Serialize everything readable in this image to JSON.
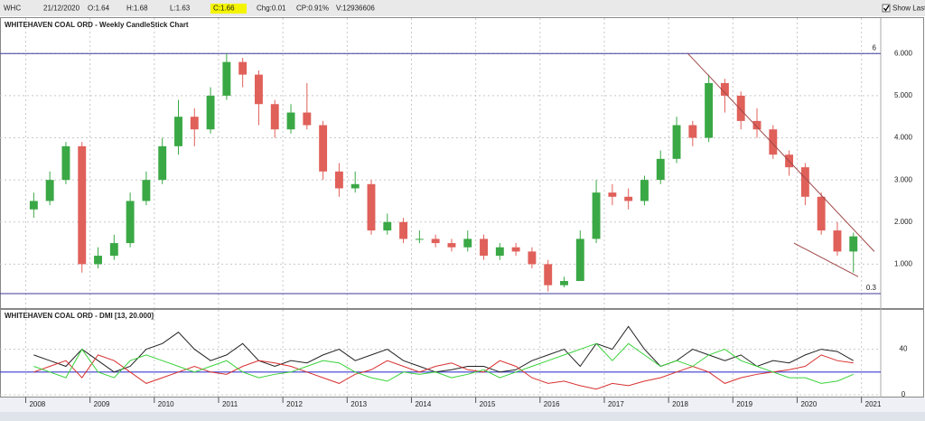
{
  "header": {
    "symbol": "WHC",
    "date": "21/12/2020",
    "open": "O:1.64",
    "high": "H:1.68",
    "low": "L:1.63",
    "close": "C:1.66",
    "change": "Chg:0.01",
    "change_pct": "CP:0.91%",
    "volume": "V:12936606",
    "show_last": "Show Last"
  },
  "chart_data": [
    {
      "type": "candlestick",
      "title": "WHITEHAVEN COAL ORD - Weekly CandleStick Chart",
      "x": [
        2008.125,
        2008.375,
        2008.625,
        2008.875,
        2009.125,
        2009.375,
        2009.625,
        2009.875,
        2010.125,
        2010.375,
        2010.625,
        2010.875,
        2011.125,
        2011.375,
        2011.625,
        2011.875,
        2012.125,
        2012.375,
        2012.625,
        2012.875,
        2013.125,
        2013.375,
        2013.625,
        2013.875,
        2014.125,
        2014.375,
        2014.625,
        2014.875,
        2015.125,
        2015.375,
        2015.625,
        2015.875,
        2016.125,
        2016.375,
        2016.625,
        2016.875,
        2017.125,
        2017.375,
        2017.625,
        2017.875,
        2018.125,
        2018.375,
        2018.625,
        2018.875,
        2019.125,
        2019.375,
        2019.625,
        2019.875,
        2020.125,
        2020.375,
        2020.625,
        2020.875
      ],
      "open": [
        2.3,
        2.5,
        3.0,
        3.8,
        1.0,
        1.2,
        1.5,
        2.5,
        3.0,
        3.8,
        4.5,
        4.2,
        5.0,
        5.8,
        5.5,
        4.8,
        4.2,
        4.6,
        4.3,
        3.2,
        2.8,
        2.9,
        1.8,
        2.0,
        1.6,
        1.6,
        1.5,
        1.4,
        1.6,
        1.2,
        1.4,
        1.3,
        1.0,
        0.5,
        0.6,
        1.6,
        2.7,
        2.6,
        2.5,
        3.0,
        3.5,
        4.3,
        4.0,
        5.3,
        5.0,
        4.4,
        4.2,
        3.6,
        3.3,
        2.6,
        1.8,
        1.3
      ],
      "high": [
        2.7,
        3.2,
        3.9,
        3.9,
        1.4,
        1.7,
        2.7,
        3.2,
        4.0,
        4.9,
        4.7,
        5.2,
        6.0,
        5.9,
        5.6,
        4.9,
        4.8,
        5.3,
        4.4,
        3.4,
        3.2,
        3.0,
        2.2,
        2.1,
        1.8,
        1.7,
        1.6,
        1.8,
        1.7,
        1.5,
        1.5,
        1.4,
        1.1,
        0.7,
        1.8,
        3.0,
        2.9,
        2.8,
        3.1,
        3.7,
        4.5,
        4.4,
        5.5,
        5.4,
        5.1,
        4.7,
        4.3,
        3.7,
        3.4,
        2.7,
        2.0,
        1.75
      ],
      "low": [
        2.1,
        2.4,
        2.9,
        0.8,
        0.9,
        1.1,
        1.4,
        2.4,
        2.9,
        3.6,
        3.8,
        4.1,
        4.9,
        5.2,
        4.3,
        4.0,
        4.1,
        4.2,
        3.0,
        2.6,
        2.7,
        1.7,
        1.7,
        1.5,
        1.5,
        1.4,
        1.3,
        1.3,
        1.1,
        1.1,
        1.2,
        0.9,
        0.35,
        0.45,
        0.6,
        1.5,
        2.4,
        2.3,
        2.4,
        2.9,
        3.4,
        3.8,
        3.9,
        4.6,
        4.2,
        4.0,
        3.5,
        3.1,
        2.4,
        1.7,
        1.2,
        0.8
      ],
      "close": [
        2.5,
        3.0,
        3.8,
        1.0,
        1.2,
        1.5,
        2.5,
        3.0,
        3.8,
        4.5,
        4.2,
        5.0,
        5.8,
        5.5,
        4.8,
        4.2,
        4.6,
        4.3,
        3.2,
        2.8,
        2.9,
        1.8,
        2.0,
        1.6,
        1.6,
        1.5,
        1.4,
        1.6,
        1.2,
        1.4,
        1.3,
        1.0,
        0.5,
        0.6,
        1.6,
        2.7,
        2.6,
        2.5,
        3.0,
        3.5,
        4.3,
        4.0,
        5.3,
        5.0,
        4.4,
        4.2,
        3.6,
        3.3,
        2.6,
        1.8,
        1.3,
        1.66
      ],
      "up_color": "#3aa845",
      "down_color": "#e0605a",
      "xlim": [
        2007.6,
        2021.3
      ],
      "ylim": [
        0,
        6.8
      ],
      "yticks": [
        {
          "value": 1,
          "label": "1.000"
        },
        {
          "value": 2,
          "label": "2.000"
        },
        {
          "value": 3,
          "label": "3.000"
        },
        {
          "value": 4,
          "label": "4.000"
        },
        {
          "value": 5,
          "label": "5.000"
        },
        {
          "value": 6,
          "label": "6.000"
        }
      ],
      "levels": [
        {
          "value": 6,
          "label": "6"
        },
        {
          "value": 0.3,
          "label": "0.3"
        }
      ],
      "level_color": "#3b3b9a",
      "trendlines": [
        {
          "x": [
            2018.3,
            2021.2
          ],
          "y": [
            6.0,
            1.3
          ]
        },
        {
          "x": [
            2019.95,
            2020.95
          ],
          "y": [
            1.5,
            0.7
          ]
        }
      ],
      "trend_color": "#a04848",
      "grid": true
    },
    {
      "type": "line",
      "title": "WHITEHAVEN COAL ORD - DMI [13, 20.000]",
      "x": [
        2008.125,
        2008.375,
        2008.625,
        2008.875,
        2009.125,
        2009.375,
        2009.625,
        2009.875,
        2010.125,
        2010.375,
        2010.625,
        2010.875,
        2011.125,
        2011.375,
        2011.625,
        2011.875,
        2012.125,
        2012.375,
        2012.625,
        2012.875,
        2013.125,
        2013.375,
        2013.625,
        2013.875,
        2014.125,
        2014.375,
        2014.625,
        2014.875,
        2015.125,
        2015.375,
        2015.625,
        2015.875,
        2016.125,
        2016.375,
        2016.625,
        2016.875,
        2017.125,
        2017.375,
        2017.625,
        2017.875,
        2018.125,
        2018.375,
        2018.625,
        2018.875,
        2019.125,
        2019.375,
        2019.625,
        2019.875,
        2020.125,
        2020.375,
        2020.625,
        2020.875
      ],
      "series": [
        {
          "color": "#222222",
          "values": [
            35,
            30,
            25,
            40,
            30,
            20,
            25,
            40,
            45,
            55,
            40,
            30,
            35,
            45,
            30,
            25,
            30,
            28,
            35,
            40,
            30,
            35,
            40,
            30,
            25,
            20,
            22,
            25,
            25,
            20,
            22,
            30,
            35,
            40,
            25,
            45,
            40,
            60,
            40,
            25,
            30,
            40,
            35,
            30,
            35,
            25,
            30,
            28,
            35,
            40,
            38,
            30
          ]
        },
        {
          "color": "#d83030",
          "values": [
            20,
            25,
            30,
            15,
            35,
            30,
            20,
            10,
            15,
            20,
            25,
            20,
            18,
            25,
            30,
            28,
            25,
            20,
            15,
            10,
            18,
            22,
            30,
            25,
            20,
            25,
            28,
            22,
            20,
            30,
            25,
            15,
            10,
            12,
            8,
            5,
            10,
            8,
            12,
            15,
            20,
            25,
            20,
            10,
            15,
            18,
            20,
            22,
            25,
            35,
            30,
            28
          ]
        },
        {
          "color": "#3ad23a",
          "values": [
            25,
            20,
            15,
            40,
            20,
            15,
            30,
            35,
            30,
            25,
            20,
            25,
            30,
            20,
            15,
            18,
            20,
            25,
            30,
            28,
            20,
            15,
            12,
            20,
            18,
            20,
            15,
            18,
            22,
            15,
            20,
            25,
            30,
            35,
            40,
            45,
            30,
            45,
            35,
            25,
            30,
            25,
            35,
            40,
            30,
            25,
            20,
            15,
            15,
            10,
            12,
            18
          ]
        }
      ],
      "level": 20,
      "level_color": "#3b3bd0",
      "xlim": [
        2007.6,
        2021.3
      ],
      "xticks": [
        2008,
        2009,
        2010,
        2011,
        2012,
        2013,
        2014,
        2015,
        2016,
        2017,
        2018,
        2019,
        2020,
        2021
      ],
      "ylim": [
        0,
        73
      ],
      "yticks": [
        0,
        40
      ],
      "grid": true
    }
  ]
}
